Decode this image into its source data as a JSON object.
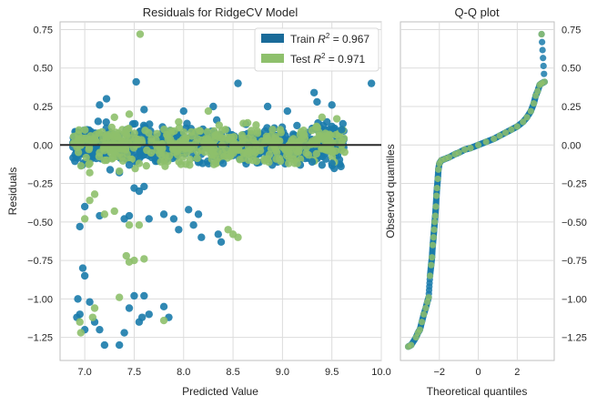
{
  "chart_data": [
    {
      "type": "scatter",
      "title": "Residuals for RidgeCV Model",
      "xlabel": "Predicted Value",
      "ylabel": "Residuals",
      "xlim": [
        6.75,
        10.0
      ],
      "ylim": [
        -1.4,
        0.8
      ],
      "xticks": [
        "7.0",
        "7.5",
        "8.0",
        "8.5",
        "9.0",
        "9.5",
        "10.0"
      ],
      "yticks": [
        "0.75",
        "0.50",
        "0.25",
        "0.00",
        "−0.25",
        "−0.50",
        "−0.75",
        "−1.00",
        "−1.25"
      ],
      "grid": true,
      "legend_position": "top-right",
      "zero_line": 0,
      "series": [
        {
          "name": "Train R² = 0.967",
          "legend_prefix": "Train ",
          "legend_r2": "0.967",
          "color": "#1a7bab",
          "points": [
            [
              7.52,
              0.41
            ],
            [
              7.22,
              0.3
            ],
            [
              8.55,
              0.4
            ],
            [
              9.32,
              0.34
            ],
            [
              9.9,
              0.4
            ],
            [
              7.45,
              -0.13
            ],
            [
              7.35,
              -0.18
            ],
            [
              7.55,
              -0.3
            ],
            [
              7.5,
              -0.28
            ],
            [
              7.6,
              -0.27
            ],
            [
              7.65,
              -0.48
            ],
            [
              7.8,
              -0.45
            ],
            [
              7.9,
              -0.48
            ],
            [
              7.95,
              -0.55
            ],
            [
              8.05,
              -0.42
            ],
            [
              8.1,
              -0.52
            ],
            [
              8.15,
              -0.45
            ],
            [
              8.35,
              -0.58
            ],
            [
              8.38,
              -0.63
            ],
            [
              8.18,
              -0.6
            ],
            [
              7.4,
              -0.48
            ],
            [
              7.45,
              -0.46
            ],
            [
              7.0,
              -0.4
            ],
            [
              6.95,
              -0.53
            ],
            [
              7.15,
              -0.46
            ],
            [
              6.98,
              -0.8
            ],
            [
              7.0,
              -0.85
            ],
            [
              6.93,
              -1.0
            ],
            [
              7.05,
              -1.02
            ],
            [
              6.95,
              -1.1
            ],
            [
              7.1,
              -1.15
            ],
            [
              7.15,
              -1.2
            ],
            [
              7.0,
              -1.2
            ],
            [
              7.2,
              -1.3
            ],
            [
              6.92,
              -1.12
            ],
            [
              7.45,
              -1.06
            ],
            [
              7.55,
              -1.15
            ],
            [
              7.5,
              -0.98
            ],
            [
              7.6,
              -0.98
            ],
            [
              7.4,
              -1.22
            ],
            [
              7.8,
              -1.05
            ],
            [
              7.85,
              -1.12
            ],
            [
              7.65,
              -1.1
            ],
            [
              7.58,
              -1.12
            ],
            [
              7.35,
              -1.3
            ],
            [
              9.18,
              -0.13
            ],
            [
              9.5,
              -0.12
            ],
            [
              9.4,
              -0.13
            ],
            [
              9.3,
              -0.11
            ],
            [
              8.4,
              -0.12
            ],
            [
              9.6,
              0.1
            ],
            [
              9.45,
              0.15
            ],
            [
              9.5,
              0.26
            ],
            [
              9.35,
              0.28
            ],
            [
              8.3,
              0.25
            ],
            [
              7.15,
              0.26
            ],
            [
              7.6,
              0.23
            ],
            [
              8.0,
              0.22
            ],
            [
              8.85,
              0.25
            ],
            [
              9.05,
              0.22
            ]
          ]
        },
        {
          "name": "Test R² = 0.971",
          "legend_prefix": "Test ",
          "legend_r2": "0.971",
          "color": "#8ec06c",
          "points": [
            [
              7.56,
              0.72
            ],
            [
              7.3,
              0.18
            ],
            [
              7.45,
              0.2
            ],
            [
              8.25,
              0.22
            ],
            [
              9.55,
              0.17
            ],
            [
              7.05,
              -0.12
            ],
            [
              7.2,
              -0.1
            ],
            [
              7.35,
              -0.17
            ],
            [
              7.55,
              -0.12
            ],
            [
              7.0,
              -0.48
            ],
            [
              7.05,
              -0.36
            ],
            [
              7.1,
              -0.32
            ],
            [
              7.2,
              -0.45
            ],
            [
              7.3,
              -0.43
            ],
            [
              7.45,
              -0.52
            ],
            [
              7.55,
              -0.52
            ],
            [
              8.45,
              -0.55
            ],
            [
              8.5,
              -0.58
            ],
            [
              8.55,
              -0.6
            ],
            [
              7.42,
              -0.72
            ],
            [
              7.5,
              -0.75
            ],
            [
              7.45,
              -0.76
            ],
            [
              7.6,
              -0.74
            ],
            [
              7.35,
              -0.99
            ],
            [
              6.95,
              -1.15
            ],
            [
              7.08,
              -1.12
            ],
            [
              6.96,
              -1.22
            ],
            [
              7.1,
              -1.06
            ],
            [
              7.8,
              -1.14
            ],
            [
              7.05,
              -0.18
            ],
            [
              7.15,
              -0.05
            ],
            [
              9.15,
              -0.12
            ],
            [
              9.4,
              0.18
            ],
            [
              7.95,
              0.15
            ],
            [
              8.7,
              -0.1
            ],
            [
              8.9,
              0.1
            ]
          ]
        }
      ]
    },
    {
      "type": "scatter",
      "title": "Q-Q plot",
      "xlabel": "Theoretical quantiles",
      "ylabel": "Observed quantiles",
      "xlim": [
        -4.0,
        3.9
      ],
      "ylim": [
        -1.4,
        0.8
      ],
      "xticks": [
        "−2",
        "0",
        "2"
      ],
      "yticks": [
        "0.75",
        "0.50",
        "0.25",
        "0.00",
        "−0.25",
        "−0.50",
        "−0.75",
        "−1.00",
        "−1.25"
      ],
      "grid": true,
      "y_ticks_side": "right",
      "series": [
        {
          "name": "",
          "color": "#8ec06c",
          "edge_color": "#1a7bab",
          "points": [
            [
              -3.6,
              -1.31
            ],
            [
              -3.45,
              -1.3
            ],
            [
              -3.2,
              -1.25
            ],
            [
              -3.1,
              -1.22
            ],
            [
              -3.0,
              -1.2
            ],
            [
              -2.9,
              -1.15
            ],
            [
              -2.8,
              -1.1
            ],
            [
              -2.7,
              -1.06
            ],
            [
              -2.62,
              -1.02
            ],
            [
              -2.55,
              -0.99
            ],
            [
              -2.48,
              -0.85
            ],
            [
              -2.42,
              -0.78
            ],
            [
              -2.38,
              -0.73
            ],
            [
              -2.34,
              -0.65
            ],
            [
              -2.3,
              -0.6
            ],
            [
              -2.27,
              -0.55
            ],
            [
              -2.24,
              -0.5
            ],
            [
              -2.21,
              -0.46
            ],
            [
              -2.18,
              -0.4
            ],
            [
              -2.15,
              -0.33
            ],
            [
              -2.12,
              -0.28
            ],
            [
              -2.08,
              -0.22
            ],
            [
              -2.05,
              -0.16
            ],
            [
              -2.0,
              -0.12
            ],
            [
              -1.9,
              -0.1
            ],
            [
              -1.7,
              -0.09
            ],
            [
              -1.5,
              -0.08
            ],
            [
              -1.2,
              -0.06
            ],
            [
              -1.0,
              -0.05
            ],
            [
              -0.7,
              -0.03
            ],
            [
              -0.4,
              -0.02
            ],
            [
              0.0,
              0.0
            ],
            [
              0.4,
              0.02
            ],
            [
              0.8,
              0.04
            ],
            [
              1.1,
              0.06
            ],
            [
              1.4,
              0.08
            ],
            [
              1.7,
              0.1
            ],
            [
              2.0,
              0.12
            ],
            [
              2.3,
              0.15
            ],
            [
              2.5,
              0.18
            ],
            [
              2.7,
              0.22
            ],
            [
              2.85,
              0.27
            ],
            [
              2.95,
              0.32
            ],
            [
              3.05,
              0.35
            ],
            [
              3.15,
              0.39
            ],
            [
              3.25,
              0.4
            ],
            [
              3.4,
              0.41
            ],
            [
              3.25,
              0.72
            ]
          ]
        }
      ]
    }
  ]
}
